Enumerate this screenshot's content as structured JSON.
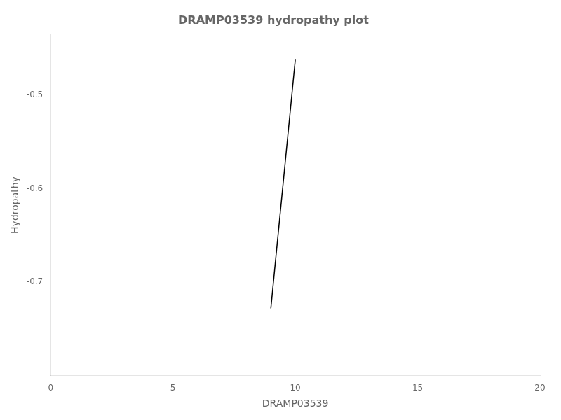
{
  "chart_data": {
    "type": "line",
    "title": "DRAMP03539 hydropathy plot",
    "xlabel": "DRAMP03539",
    "ylabel": "Hydropathy",
    "x": [
      9.0,
      10.0
    ],
    "values": [
      -0.728,
      -0.462
    ],
    "color": "#000000",
    "xlim": [
      0,
      20
    ],
    "ylim": [
      -0.8,
      -0.435
    ],
    "xticks": [
      0,
      5,
      10,
      15,
      20
    ],
    "yticks": [
      -0.7,
      -0.6,
      -0.5
    ],
    "grid": false
  }
}
